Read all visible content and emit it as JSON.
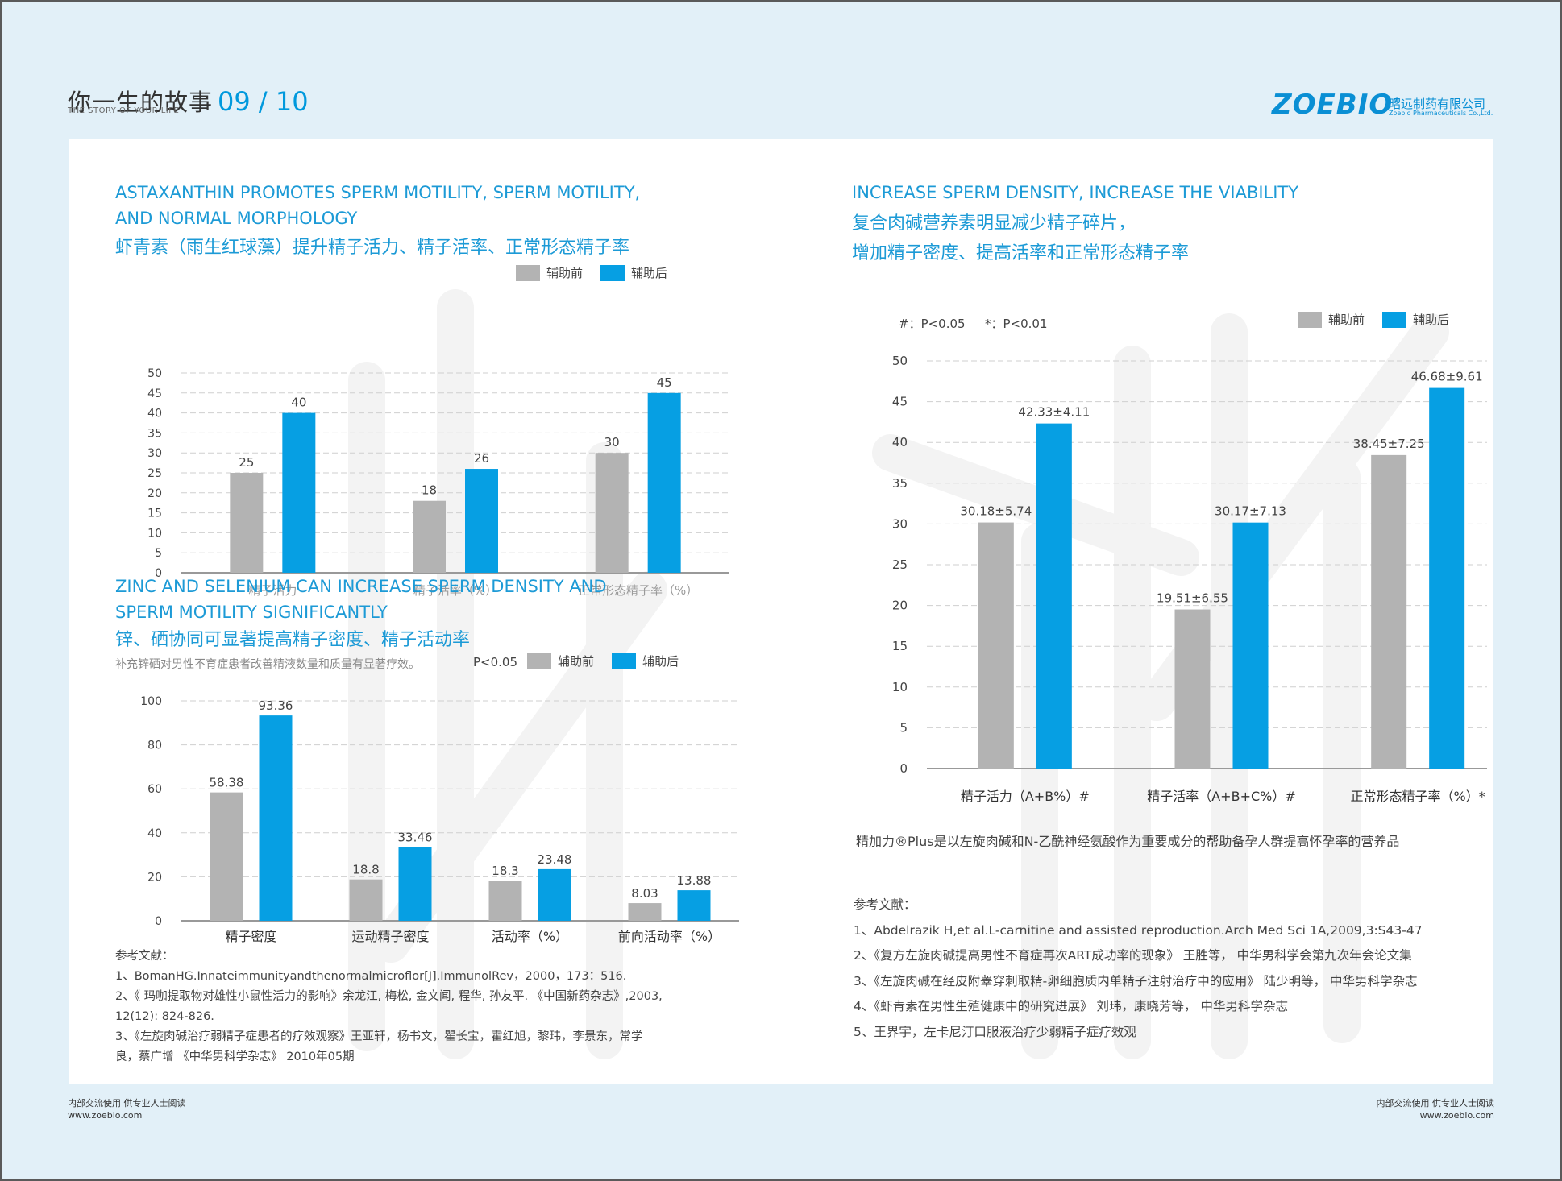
{
  "header": {
    "title": "你一生的故事",
    "page_number": "09 / 10",
    "subtitle": "THE STORY OF YOUR LIFE",
    "brand": "ZOEBIO",
    "brand_mark": "®",
    "company_zh": "昭远制药有限公司",
    "company_en": "Zoebio Pharmaceuticals Co.,Ltd."
  },
  "colors": {
    "before": "#b3b3b3",
    "after": "#069fe3",
    "title": "#1c9ad6"
  },
  "section1": {
    "title_en_1": "ASTAXANTHIN PROMOTES SPERM MOTILITY, SPERM MOTILITY,",
    "title_en_2": "AND NORMAL MORPHOLOGY",
    "title_zh": "虾青素（雨生红球藻）提升精子活力、精子活率、正常形态精子率",
    "legend_before": "辅助前",
    "legend_after": "辅助后"
  },
  "section2": {
    "title_en_1": "ZINC AND SELENIUM CAN INCREASE SPERM DENSITY AND",
    "title_en_2": "SPERM MOTILITY SIGNIFICANTLY",
    "title_zh": "锌、硒协同可显著提高精子密度、精子活动率",
    "note": "补充锌硒对男性不育症患者改善精液数量和质量有显著疗效。",
    "p_label": "P<0.05",
    "legend_before": "辅助前",
    "legend_after": "辅助后"
  },
  "section3": {
    "title_en": "INCREASE SPERM DENSITY, INCREASE THE VIABILITY",
    "title_zh_1": "复合肉碱营养素明显减少精子碎片，",
    "title_zh_2": "增加精子密度、提高活率和正常形态精子率",
    "p_label_1": "#：P<0.05",
    "p_label_2": "*：P<0.01",
    "legend_before": "辅助前",
    "legend_after": "辅助后",
    "product_note": "精加力®Plus是以左旋肉碱和N-乙酰神经氨酸作为重要成分的帮助备孕人群提高怀孕率的营养品"
  },
  "chart_data": [
    {
      "id": "chart1",
      "type": "bar",
      "title": "虾青素（雨生红球藻）提升精子活力、精子活率、正常形态精子率",
      "categories": [
        "精子活力",
        "精子活率（%）",
        "正常形态精子率（%）"
      ],
      "series": [
        {
          "name": "辅助前",
          "values": [
            25,
            18,
            30
          ]
        },
        {
          "name": "辅助后",
          "values": [
            40,
            26,
            45
          ]
        }
      ],
      "labels": [
        [
          "25",
          "18",
          "30"
        ],
        [
          "40",
          "26",
          "45"
        ]
      ],
      "yticks": [
        "0",
        "5",
        "10",
        "15",
        "20",
        "25",
        "30",
        "35",
        "40",
        "45",
        "50"
      ],
      "ylim": [
        0,
        50
      ]
    },
    {
      "id": "chart2",
      "type": "bar",
      "title": "锌、硒协同可显著提高精子密度、精子活动率",
      "categories": [
        "精子密度",
        "运动精子密度",
        "活动率（%）",
        "前向活动率（%）"
      ],
      "series": [
        {
          "name": "辅助前",
          "values": [
            58.38,
            18.8,
            18.3,
            8.03
          ]
        },
        {
          "name": "辅助后",
          "values": [
            93.36,
            33.46,
            23.48,
            13.88
          ]
        }
      ],
      "labels": [
        [
          "58.38",
          "18.8",
          "18.3",
          "8.03"
        ],
        [
          "93.36",
          "33.46",
          "23.48",
          "13.88"
        ]
      ],
      "yticks": [
        "0",
        "20",
        "40",
        "60",
        "80",
        "100"
      ],
      "ylim": [
        0,
        100
      ]
    },
    {
      "id": "chart3",
      "type": "bar",
      "title": "复合肉碱营养素明显减少精子碎片，增加精子密度、提高活率和正常形态精子率",
      "categories": [
        "精子活力（A+B%）#",
        "精子活率（A+B+C%）#",
        "正常形态精子率（%）*"
      ],
      "series": [
        {
          "name": "辅助前",
          "values": [
            30.18,
            19.51,
            38.45
          ]
        },
        {
          "name": "辅助后",
          "values": [
            42.33,
            30.17,
            46.68
          ]
        }
      ],
      "labels": [
        [
          "30.18±5.74",
          "19.51±6.55",
          "38.45±7.25"
        ],
        [
          "42.33±4.11",
          "30.17±7.13",
          "46.68±9.61"
        ]
      ],
      "yticks": [
        "0",
        "5",
        "10",
        "15",
        "20",
        "25",
        "30",
        "35",
        "40",
        "45",
        "50"
      ],
      "ylim": [
        0,
        50
      ]
    }
  ],
  "refs_left": {
    "heading": "参考文献：",
    "lines": [
      "1、BomanHG.Innateimmunityandthenormalmicroflor[J].ImmunolRev，2000，173：516.",
      "2、《 玛咖提取物对雄性小鼠性活力的影响》余龙江, 梅松, 金文闻, 程华, 孙友平. 《中国新药杂志》,2003,",
      "12(12): 824-826.",
      "3、《左旋肉碱治疗弱精子症患者的疗效观察》王亚轩，杨书文，瞿长宝，霍红旭，黎玮，李景东，常学",
      "良，蔡广增 《中华男科学杂志》 2010年05期"
    ]
  },
  "refs_right": {
    "heading": "参考文献：",
    "lines": [
      "1、Abdelrazik H,et al.L-carnitine and assisted reproduction.Arch Med Sci 1A,2009,3:S43-47",
      "2、《复方左旋肉碱提高男性不育症再次ART成功率的现象》 王胜等， 中华男科学会第九次年会论文集",
      "3、《左旋肉碱在经皮附睾穿刺取精-卵细胞质内单精子注射治疗中的应用》 陆少明等， 中华男科学杂志",
      "4、《虾青素在男性生殖健康中的研究进展》 刘玮，康晓芳等， 中华男科学杂志",
      "5、王界宇，左卡尼汀口服液治疗少弱精子症疗效观"
    ]
  },
  "footer": {
    "left_line1": "内部交流使用 供专业人士阅读",
    "left_line2": "www.zoebio.com",
    "right_line1": "内部交流使用 供专业人士阅读",
    "right_line2": "www.zoebio.com"
  }
}
